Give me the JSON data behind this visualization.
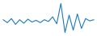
{
  "y": [
    3.0,
    2.5,
    3.2,
    2.2,
    3.0,
    2.4,
    3.1,
    2.6,
    2.9,
    2.5,
    3.0,
    2.7,
    3.5,
    2.3,
    5.8,
    0.8,
    3.8,
    1.2,
    4.0,
    1.5,
    3.2,
    2.8,
    3.0
  ],
  "line_color": "#1b7abf",
  "linewidth": 0.8,
  "background_color": "#ffffff"
}
